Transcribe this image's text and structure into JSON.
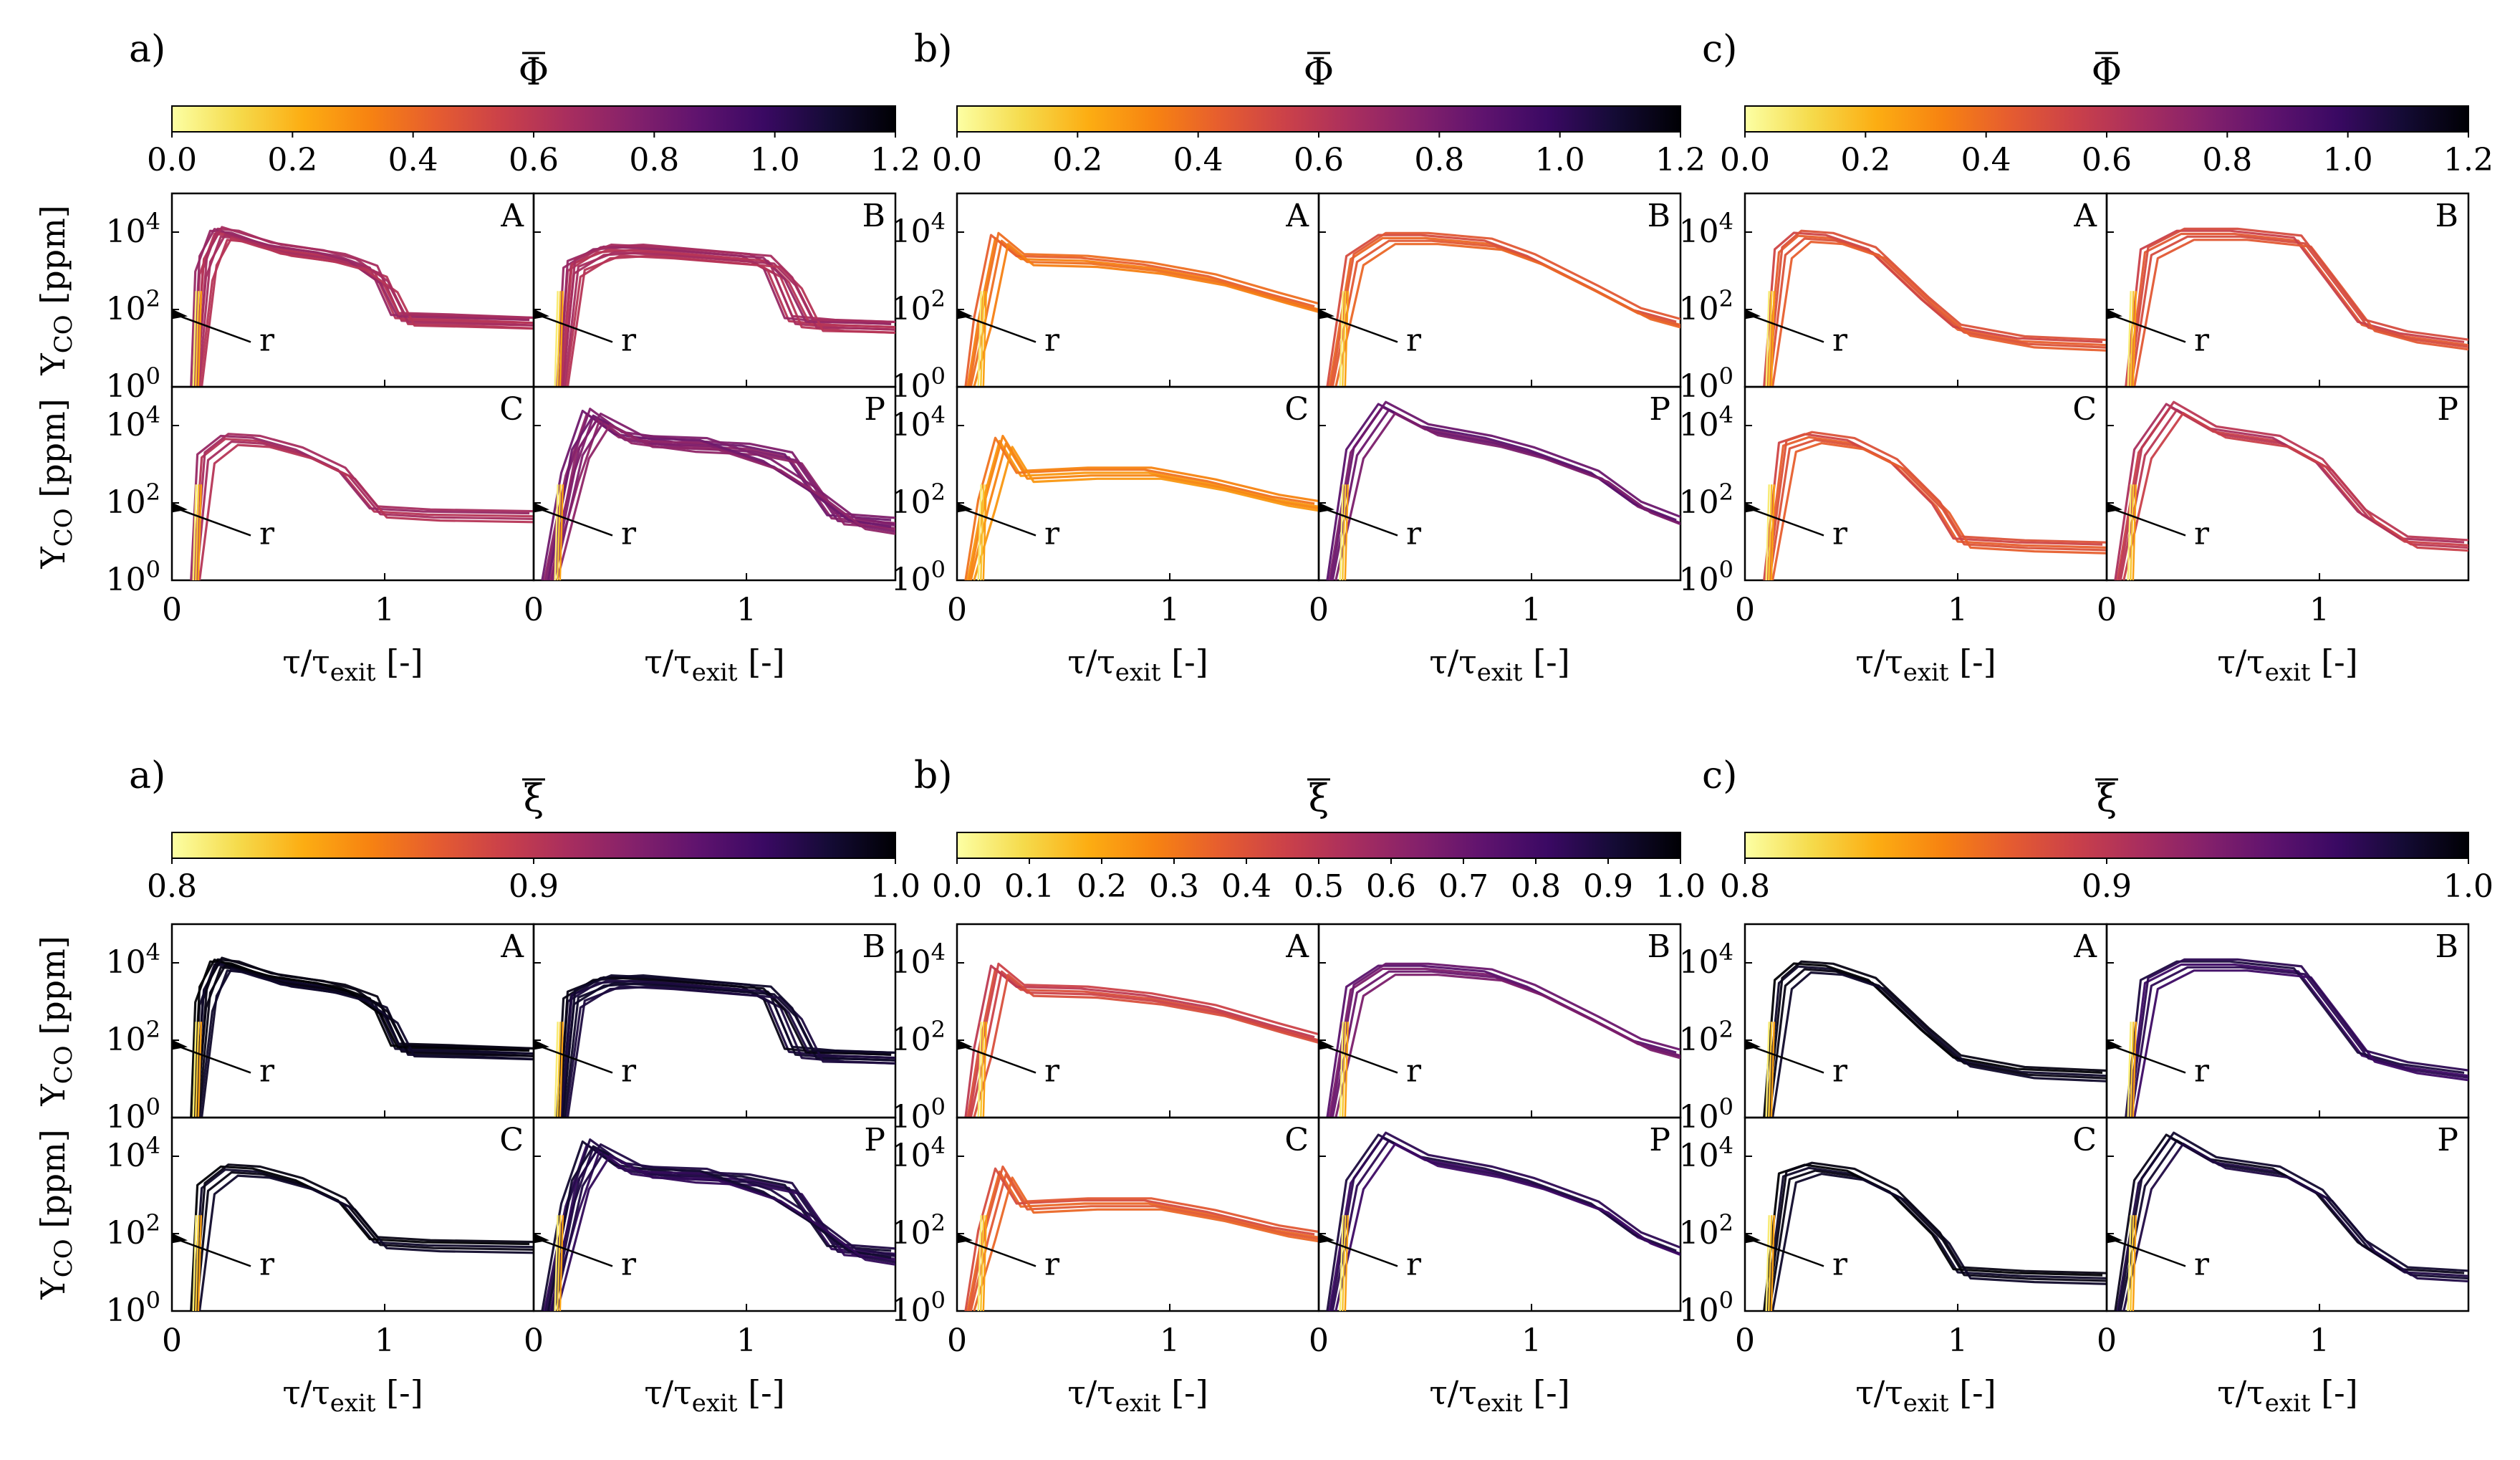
{
  "colormap": {
    "name": "inferno_r",
    "stops": [
      "#fcffa4",
      "#f5db4c",
      "#fcad12",
      "#f78311",
      "#e65d2f",
      "#cb4149",
      "#a92e5e",
      "#85216b",
      "#5f136e",
      "#3a0963",
      "#140b35",
      "#000004"
    ]
  },
  "figure": {
    "x_axis_label": "τ/τexit [-]",
    "y_axis_label": "YCO [ppm]",
    "radial_marker": "r",
    "rows": [
      {
        "colorbar_variable": "Φ",
        "groups": [
          {
            "letter": "a)",
            "cbar": {
              "min": 0.0,
              "max": 1.2,
              "ticks": [
                "0.0",
                "0.2",
                "0.4",
                "0.6",
                "0.8",
                "1.0",
                "1.2"
              ]
            }
          },
          {
            "letter": "b)",
            "cbar": {
              "min": 0.0,
              "max": 1.2,
              "ticks": [
                "0.0",
                "0.2",
                "0.4",
                "0.6",
                "0.8",
                "1.0",
                "1.2"
              ]
            }
          },
          {
            "letter": "c)",
            "cbar": {
              "min": 0.0,
              "max": 1.2,
              "ticks": [
                "0.0",
                "0.2",
                "0.4",
                "0.6",
                "0.8",
                "1.0",
                "1.2"
              ]
            }
          }
        ]
      },
      {
        "colorbar_variable": "ξ",
        "groups": [
          {
            "letter": "a)",
            "cbar": {
              "min": 0.8,
              "max": 1.0,
              "ticks": [
                "0.8",
                "0.9",
                "1.0"
              ]
            }
          },
          {
            "letter": "b)",
            "cbar": {
              "min": 0.0,
              "max": 1.0,
              "ticks": [
                "0.0",
                "0.1",
                "0.2",
                "0.3",
                "0.4",
                "0.5",
                "0.6",
                "0.7",
                "0.8",
                "0.9",
                "1.0"
              ]
            }
          },
          {
            "letter": "c)",
            "cbar": {
              "min": 0.8,
              "max": 1.0,
              "ticks": [
                "0.8",
                "0.9",
                "1.0"
              ]
            }
          }
        ]
      }
    ]
  },
  "chart_data": {
    "type": "line",
    "x_scale": "linear",
    "y_scale": "log",
    "xlim": [
      0,
      1.7
    ],
    "ylim": [
      1,
      100000
    ],
    "x_ticks": [
      "0",
      "1"
    ],
    "y_ticks": [
      "10^0",
      "10^2",
      "10^4"
    ],
    "xlabel": "τ/τexit [-]",
    "ylabel": "YCO [ppm]",
    "panel_labels": [
      "A",
      "B",
      "C",
      "P"
    ],
    "note": "approximate curve shapes read from the figure; each curve is colored by the local mean value of the colorbar variable",
    "panels": {
      "a": {
        "A": {
          "curves": [
            {
              "x": [
                0.1,
                0.13,
                0.2,
                0.3,
                0.45,
                0.6,
                0.8,
                0.95,
                1.05,
                1.3,
                1.7
              ],
              "y": [
                1,
                800,
                9000,
                8000,
                4000,
                3000,
                2000,
                1000,
                60,
                55,
                45
              ]
            },
            {
              "x": [
                0.11,
                0.15,
                0.22,
                0.35,
                0.5,
                0.7,
                0.85,
                1.0,
                1.08,
                1.4,
                1.7
              ],
              "y": [
                1,
                2000,
                10000,
                6000,
                3500,
                2500,
                1500,
                400,
                55,
                50,
                45
              ]
            }
          ]
        },
        "B": {
          "curves": [
            {
              "x": [
                0.12,
                0.16,
                0.3,
                0.5,
                0.8,
                1.0,
                1.1,
                1.2,
                1.4,
                1.7
              ],
              "y": [
                1,
                1000,
                3000,
                3500,
                2500,
                2000,
                1000,
                50,
                40,
                35
              ]
            },
            {
              "x": [
                0.13,
                0.18,
                0.35,
                0.6,
                0.9,
                1.1,
                1.2,
                1.3,
                1.5,
                1.7
              ],
              "y": [
                1,
                1500,
                3500,
                3000,
                2200,
                1800,
                500,
                40,
                38,
                35
              ]
            }
          ]
        },
        "C": {
          "curves": [
            {
              "x": [
                0.1,
                0.14,
                0.25,
                0.4,
                0.6,
                0.8,
                0.95,
                1.2,
                1.7
              ],
              "y": [
                1,
                1500,
                4500,
                4000,
                2000,
                600,
                60,
                50,
                45
              ]
            }
          ]
        },
        "P": {
          "curves": [
            {
              "x": [
                0.05,
                0.15,
                0.25,
                0.4,
                0.7,
                1.0,
                1.2,
                1.4,
                1.7
              ],
              "y": [
                1,
                500,
                20000,
                5000,
                3000,
                2500,
                1500,
                40,
                30
              ]
            },
            {
              "x": [
                0.08,
                0.2,
                0.3,
                0.5,
                0.8,
                1.1,
                1.3,
                1.5,
                1.7
              ],
              "y": [
                1,
                2000,
                15000,
                4000,
                3500,
                1000,
                200,
                30,
                20
              ]
            }
          ]
        }
      },
      "b": {
        "A": {
          "curves": [
            {
              "x": [
                0.05,
                0.1,
                0.18,
                0.3,
                0.6,
                0.9,
                1.2,
                1.5,
                1.7
              ],
              "y": [
                1,
                50,
                7000,
                2000,
                1800,
                1200,
                600,
                200,
                100
              ]
            }
          ]
        },
        "B": {
          "curves": [
            {
              "x": [
                0.05,
                0.15,
                0.3,
                0.5,
                0.8,
                1.0,
                1.3,
                1.5,
                1.7
              ],
              "y": [
                1,
                2000,
                7000,
                7000,
                5000,
                2000,
                300,
                80,
                40
              ]
            }
          ]
        },
        "C": {
          "curves": [
            {
              "x": [
                0.05,
                0.12,
                0.2,
                0.3,
                0.6,
                0.9,
                1.2,
                1.5,
                1.7
              ],
              "y": [
                1,
                100,
                4000,
                500,
                600,
                600,
                300,
                120,
                80
              ]
            }
          ]
        },
        "P": {
          "curves": [
            {
              "x": [
                0.05,
                0.15,
                0.3,
                0.5,
                0.8,
                1.0,
                1.3,
                1.5,
                1.7
              ],
              "y": [
                1,
                2000,
                30000,
                8000,
                4000,
                2000,
                500,
                80,
                30
              ]
            }
          ]
        }
      },
      "c": {
        "A": {
          "curves": [
            {
              "x": [
                0.1,
                0.16,
                0.25,
                0.4,
                0.6,
                0.85,
                1.0,
                1.3,
                1.7
              ],
              "y": [
                1,
                3000,
                8000,
                7000,
                3000,
                150,
                30,
                15,
                12
              ]
            }
          ]
        },
        "B": {
          "curves": [
            {
              "x": [
                0.1,
                0.18,
                0.35,
                0.6,
                0.9,
                1.05,
                1.2,
                1.4,
                1.7
              ],
              "y": [
                1,
                3000,
                9000,
                9000,
                6000,
                500,
                40,
                20,
                12
              ]
            }
          ]
        },
        "C": {
          "curves": [
            {
              "x": [
                0.1,
                0.18,
                0.3,
                0.5,
                0.7,
                0.9,
                1.0,
                1.3,
                1.7
              ],
              "y": [
                1,
                3000,
                5000,
                3500,
                1000,
                80,
                10,
                8,
                7
              ]
            }
          ]
        },
        "P": {
          "curves": [
            {
              "x": [
                0.05,
                0.15,
                0.3,
                0.5,
                0.8,
                1.0,
                1.2,
                1.4,
                1.7
              ],
              "y": [
                1,
                2000,
                30000,
                7000,
                4000,
                1000,
                50,
                10,
                8
              ]
            }
          ]
        }
      }
    }
  }
}
